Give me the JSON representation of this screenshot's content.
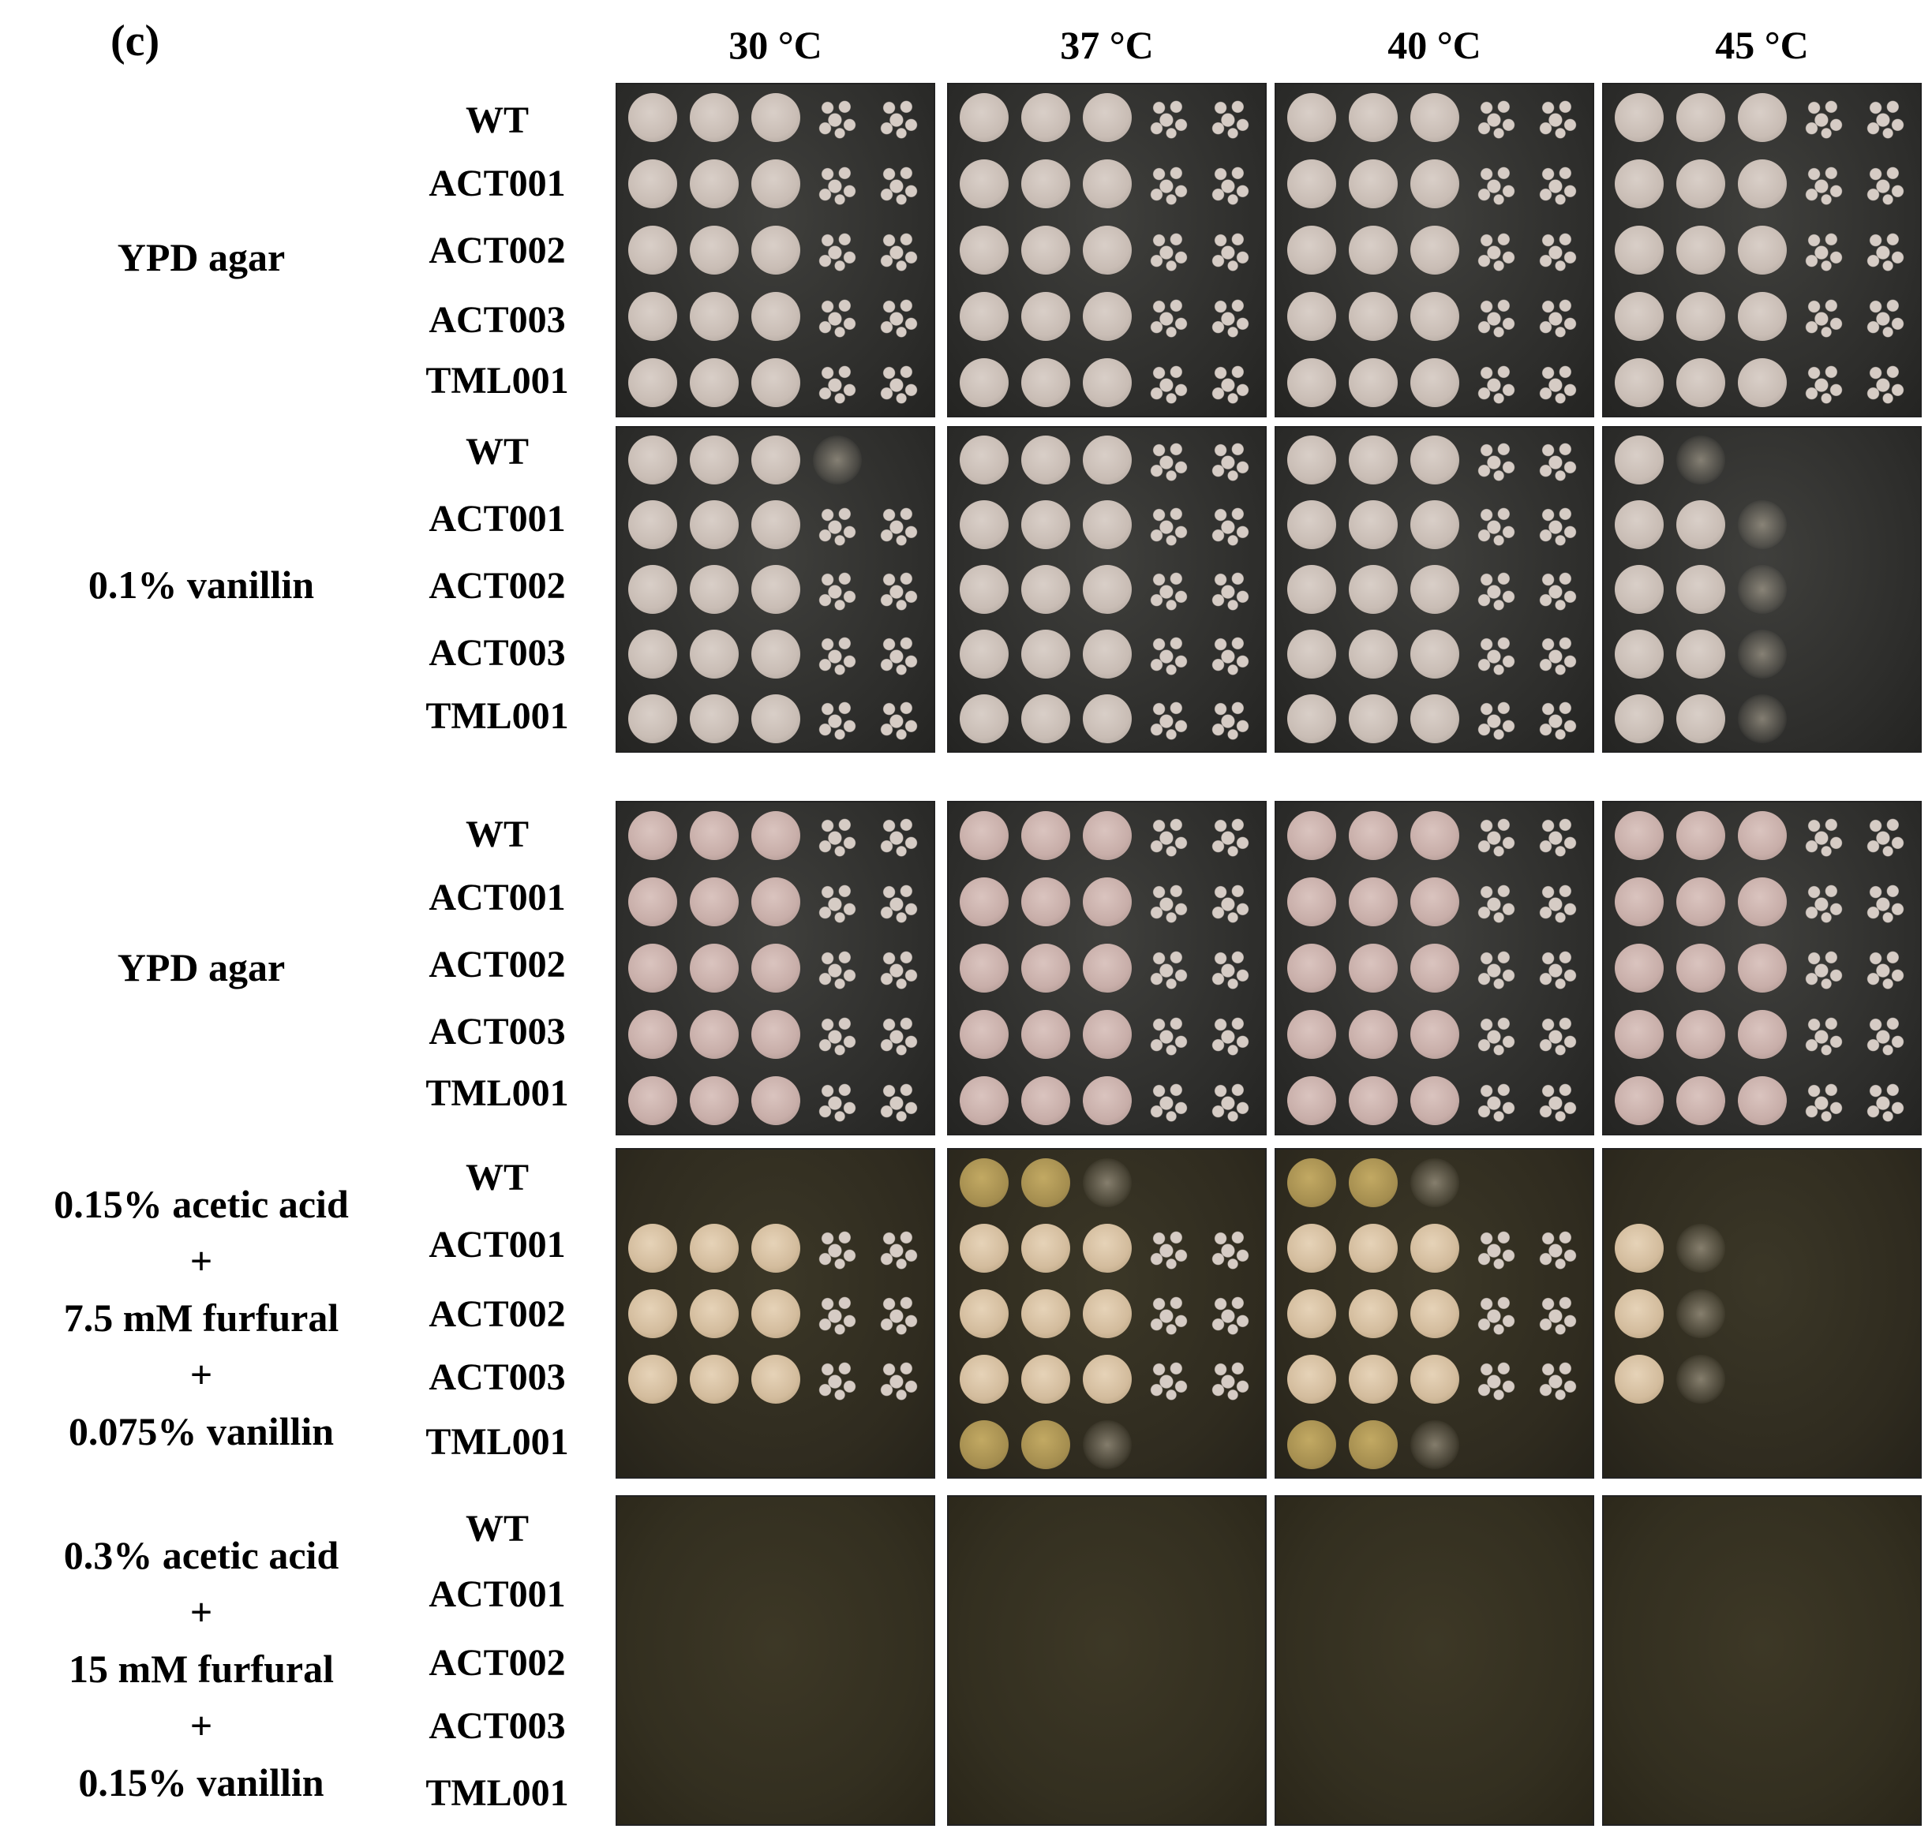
{
  "panel_label": "(c)",
  "temperatures": [
    "30 °C",
    "37 °C",
    "40 °C",
    "45 °C"
  ],
  "strains": [
    "WT",
    "ACT001",
    "ACT002",
    "ACT003",
    "TML001"
  ],
  "conditions": [
    {
      "lines": [
        "YPD agar"
      ]
    },
    {
      "lines": [
        "0.1% vanillin"
      ]
    },
    {
      "lines": [
        "YPD agar"
      ]
    },
    {
      "lines": [
        "0.15% acetic acid",
        "+",
        "7.5 mM furfural",
        "+",
        "0.075% vanillin"
      ]
    },
    {
      "lines": [
        "0.3% acetic acid",
        "+",
        "15 mM furfural",
        "+",
        "0.15% vanillin"
      ]
    }
  ],
  "growth_levels": {
    "description_key": "spots per strain row visible on plate (0-5)",
    "block_0": [
      [
        5,
        5,
        5,
        5,
        5,
        5,
        5,
        5,
        5,
        5,
        5,
        5,
        5,
        5,
        5,
        5,
        5,
        5,
        5,
        5
      ]
    ],
    "block_1": [
      [
        3,
        5,
        5,
        5,
        5
      ],
      [
        5,
        5,
        5,
        5,
        5
      ],
      [
        5,
        5,
        5,
        5,
        5
      ],
      [
        1,
        2,
        2,
        2,
        2
      ]
    ],
    "block_2": [
      [
        5,
        5,
        5,
        5,
        5
      ],
      [
        5,
        5,
        5,
        5,
        5
      ],
      [
        5,
        5,
        5,
        5,
        5
      ],
      [
        5,
        5,
        5,
        5,
        5
      ]
    ],
    "block_3": [
      [
        0,
        5,
        5,
        5,
        0
      ],
      [
        2,
        5,
        5,
        5,
        2
      ],
      [
        2,
        5,
        5,
        5,
        2
      ],
      [
        0,
        1,
        1,
        1,
        0
      ]
    ],
    "block_4": [
      [
        0,
        0,
        0,
        0,
        0
      ],
      [
        0,
        0,
        0,
        0,
        0
      ],
      [
        0,
        0,
        0,
        0,
        0
      ],
      [
        0,
        0,
        0,
        0,
        0
      ]
    ]
  }
}
